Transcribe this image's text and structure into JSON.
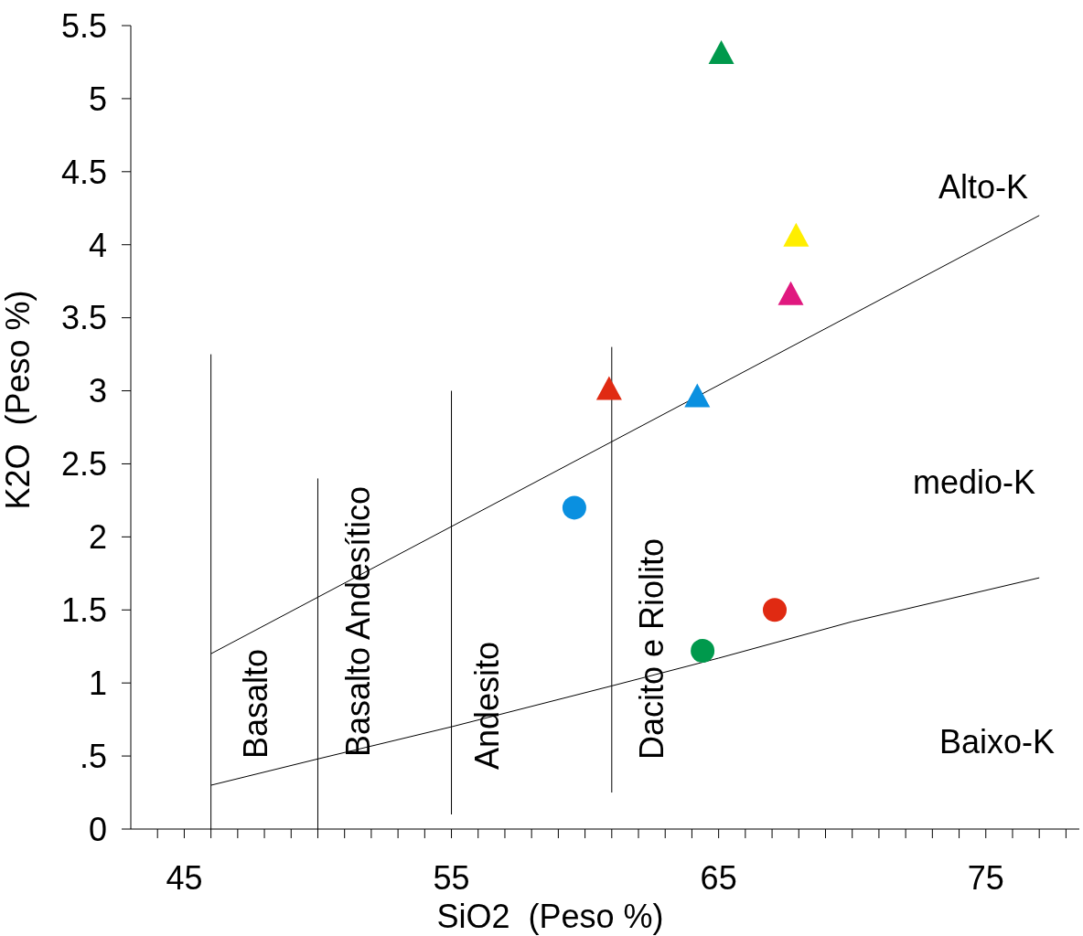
{
  "chart_data": {
    "type": "scatter",
    "xlabel": "SiO2  (Peso %)",
    "ylabel": "K2O  (Peso %)",
    "xlim": [
      43,
      78.5
    ],
    "xticks": [
      {
        "value": 44,
        "label": null
      },
      45,
      {
        "value": 46,
        "label": null
      },
      {
        "value": 47,
        "label": null
      },
      {
        "value": 48,
        "label": null
      },
      {
        "value": 49,
        "label": null
      },
      {
        "value": 50,
        "label": null
      },
      {
        "value": 51,
        "label": null
      },
      {
        "value": 52,
        "label": null
      },
      {
        "value": 53,
        "label": null
      },
      {
        "value": 54,
        "label": null
      },
      55,
      {
        "value": 56,
        "label": null
      },
      {
        "value": 57,
        "label": null
      },
      {
        "value": 58,
        "label": null
      },
      {
        "value": 59,
        "label": null
      },
      {
        "value": 60,
        "label": null
      },
      {
        "value": 61,
        "label": null
      },
      {
        "value": 62,
        "label": null
      },
      {
        "value": 63,
        "label": null
      },
      {
        "value": 64,
        "label": null
      },
      65,
      {
        "value": 66,
        "label": null
      },
      {
        "value": 67,
        "label": null
      },
      {
        "value": 68,
        "label": null
      },
      {
        "value": 69,
        "label": null
      },
      {
        "value": 70,
        "label": null
      },
      {
        "value": 71,
        "label": null
      },
      {
        "value": 72,
        "label": null
      },
      {
        "value": 73,
        "label": null
      },
      {
        "value": 74,
        "label": null
      },
      75,
      {
        "value": 76,
        "label": null
      },
      {
        "value": 77,
        "label": null
      },
      {
        "value": 78,
        "label": null
      }
    ],
    "ylim": [
      0,
      5.5
    ],
    "yticks": [
      0,
      {
        "value": 0.5,
        "label": ".5"
      },
      1,
      1.5,
      2,
      2.5,
      3,
      3.5,
      4,
      4.5,
      5,
      5.5
    ],
    "grid": false,
    "legend": false,
    "series": [
      {
        "type": "scatter",
        "marker": "triangle",
        "x": [
          65.1,
          67.9,
          67.7,
          60.9,
          64.2
        ],
        "values": [
          5.3,
          4.05,
          3.65,
          3.0,
          2.95
        ],
        "colors": [
          "#00994c",
          "#ffee00",
          "#e0187f",
          "#e02a12",
          "#0a90e0"
        ]
      },
      {
        "type": "scatter",
        "marker": "circle",
        "x": [
          59.6,
          67.1,
          64.4
        ],
        "values": [
          2.2,
          1.5,
          1.22
        ],
        "colors": [
          "#0a90e0",
          "#e02a12",
          "#00994c"
        ]
      },
      {
        "type": "line",
        "marker": "none",
        "color": "#000000",
        "x": [
          46,
          77
        ],
        "values": [
          1.2,
          4.2
        ]
      },
      {
        "type": "line",
        "marker": "none",
        "color": "#000000",
        "x": [
          46,
          50,
          55,
          61,
          65,
          70,
          77
        ],
        "values": [
          0.3,
          0.48,
          0.7,
          0.98,
          1.17,
          1.42,
          1.72
        ]
      },
      {
        "type": "line",
        "marker": "none",
        "color": "#000000",
        "x": [
          46,
          46
        ],
        "values": [
          0,
          3.25
        ]
      },
      {
        "type": "line",
        "marker": "none",
        "color": "#000000",
        "x": [
          50,
          50
        ],
        "values": [
          0,
          2.4
        ]
      },
      {
        "type": "line",
        "marker": "none",
        "color": "#000000",
        "x": [
          55,
          55
        ],
        "values": [
          0.1,
          3.0
        ]
      },
      {
        "type": "line",
        "marker": "none",
        "color": "#000000",
        "x": [
          61,
          61
        ],
        "values": [
          0.25,
          3.3
        ]
      }
    ],
    "annotations": [
      "Basalto",
      "Basalto Andesítico",
      "Andesito",
      "Dacito e Riolito",
      "Alto-K",
      "medio-K",
      "Baixo-K"
    ]
  }
}
